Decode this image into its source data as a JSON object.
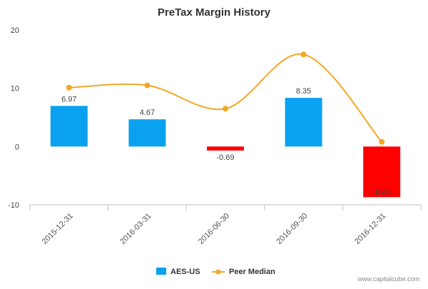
{
  "chart_data": {
    "type": "bar",
    "title": "PreTax Margin History",
    "categories": [
      "2015-12-31",
      "2016-03-31",
      "2016-06-30",
      "2016-09-30",
      "2016-12-31"
    ],
    "series": [
      {
        "name": "AES-US",
        "kind": "bar",
        "values": [
          6.97,
          4.67,
          -0.69,
          8.35,
          -8.69
        ],
        "labels": [
          "6.97",
          "4.67",
          "-0.69",
          "8.35",
          "-8.69"
        ],
        "color_positive": "#0aa1f0",
        "color_negative": "#ff0000"
      },
      {
        "name": "Peer Median",
        "kind": "line",
        "values": [
          10.1,
          10.5,
          6.5,
          15.8,
          0.8
        ],
        "color": "#f5a623"
      }
    ],
    "yticks": [
      "20",
      "10",
      "0",
      "-10"
    ],
    "ylim": [
      -10,
      20
    ],
    "xlabel": "",
    "ylabel": "",
    "grid": false,
    "legend_position": "bottom-center"
  },
  "credit": "www.capitalcube.com"
}
